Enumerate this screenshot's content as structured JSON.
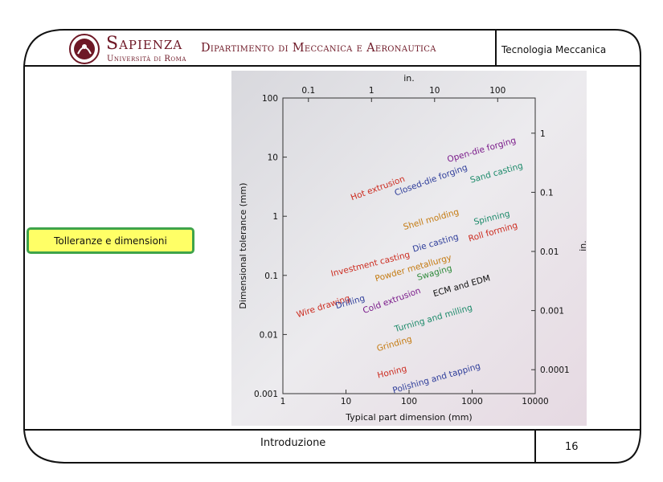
{
  "header": {
    "brand_name": "Sapienza",
    "brand_sub": "Università di Roma",
    "department": "Dipartimento di Meccanica e Aeronautica",
    "course": "Tecnologia Meccanica"
  },
  "sidebar": {
    "topic_label": "Tolleranze e dimensioni"
  },
  "footer": {
    "section": "Introduzione",
    "page_number": "16"
  },
  "colors": {
    "brand": "#6e1826",
    "topic_fill": "#ffff66",
    "topic_border": "#3fa44a"
  },
  "icons": {
    "logo": "university-seal-icon"
  },
  "chart_data": {
    "type": "scatter",
    "title": "",
    "xlabel": "Typical part dimension (mm)",
    "ylabel": "Dimensional tolerance (mm)",
    "x2label": "in.",
    "y2label": "in.",
    "xscale": "log",
    "yscale": "log",
    "xlim": [
      1,
      10000
    ],
    "ylim": [
      0.001,
      100
    ],
    "x_ticks": [
      "1",
      "10",
      "100",
      "1000",
      "10000"
    ],
    "y_ticks": [
      "0.001",
      "0.01",
      "0.1",
      "1",
      "10",
      "100"
    ],
    "x2_ticks": [
      "0.1",
      "1",
      "10",
      "100"
    ],
    "x2_values": [
      2.54,
      25.4,
      254,
      2540
    ],
    "y2_ticks": [
      "0.0001",
      "0.001",
      "0.01",
      "0.1",
      "1"
    ],
    "y2_values": [
      0.00254,
      0.0254,
      0.254,
      2.54,
      25.4
    ],
    "processes": [
      {
        "label": "Open-die forging",
        "x": 1450,
        "y": 12,
        "angle": -16,
        "color": "#7a1a8a"
      },
      {
        "label": "Hot extrusion",
        "x": 33,
        "y": 2.7,
        "angle": -20,
        "color": "#cc2a1e"
      },
      {
        "label": "Closed-die forging",
        "x": 230,
        "y": 3.7,
        "angle": -20,
        "color": "#2e3d9a"
      },
      {
        "label": "Sand casting",
        "x": 2500,
        "y": 4.9,
        "angle": -16,
        "color": "#1c8a6a"
      },
      {
        "label": "Shell molding",
        "x": 230,
        "y": 0.8,
        "angle": -16,
        "color": "#c47a10"
      },
      {
        "label": "Spinning",
        "x": 2100,
        "y": 0.85,
        "angle": -14,
        "color": "#1c8a6a"
      },
      {
        "label": "Roll forming",
        "x": 2200,
        "y": 0.49,
        "angle": -16,
        "color": "#cc2a1e"
      },
      {
        "label": "Die casting",
        "x": 270,
        "y": 0.32,
        "angle": -16,
        "color": "#2e3d9a"
      },
      {
        "label": "Investment casting",
        "x": 25,
        "y": 0.14,
        "angle": -14,
        "color": "#cc2a1e"
      },
      {
        "label": "Powder metallurgy",
        "x": 120,
        "y": 0.12,
        "angle": -16,
        "color": "#c47a10"
      },
      {
        "label": "Swaging",
        "x": 260,
        "y": 0.1,
        "angle": -16,
        "color": "#2e8a3a"
      },
      {
        "label": "Wire drawing",
        "x": 4.5,
        "y": 0.027,
        "angle": -18,
        "color": "#cc2a1e"
      },
      {
        "label": "Drilling",
        "x": 12,
        "y": 0.032,
        "angle": -16,
        "color": "#2e3d9a"
      },
      {
        "label": "Cold extrusion",
        "x": 55,
        "y": 0.034,
        "angle": -20,
        "color": "#7a1a8a"
      },
      {
        "label": "ECM and EDM",
        "x": 700,
        "y": 0.06,
        "angle": -16,
        "color": "#111111"
      },
      {
        "label": "Turning and milling",
        "x": 250,
        "y": 0.017,
        "angle": -16,
        "color": "#1c8a6a"
      },
      {
        "label": "Grinding",
        "x": 60,
        "y": 0.0063,
        "angle": -16,
        "color": "#c47a10"
      },
      {
        "label": "Honing",
        "x": 55,
        "y": 0.0021,
        "angle": -14,
        "color": "#cc2a1e"
      },
      {
        "label": "Polishing and tapping",
        "x": 280,
        "y": 0.00165,
        "angle": -16,
        "color": "#2e3d9a"
      }
    ]
  }
}
